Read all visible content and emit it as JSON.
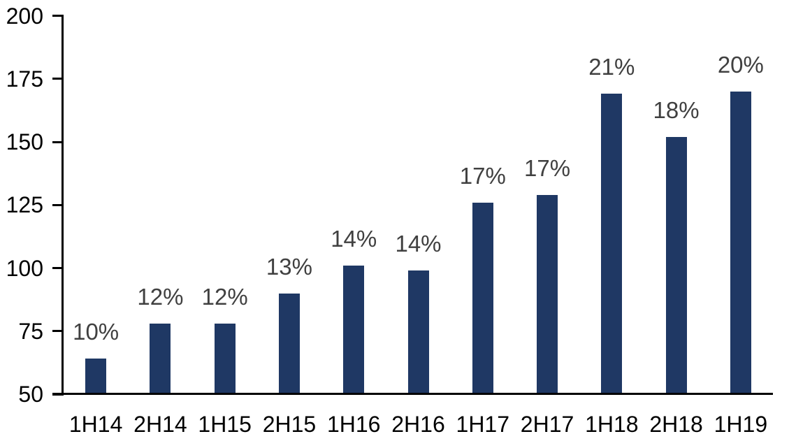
{
  "chart_data": {
    "type": "bar",
    "title": "",
    "xlabel": "",
    "ylabel": "",
    "categories": [
      "1H14",
      "2H14",
      "1H15",
      "2H15",
      "1H16",
      "2H16",
      "1H17",
      "2H17",
      "1H18",
      "2H18",
      "1H19"
    ],
    "values": [
      64,
      78,
      78,
      90,
      101,
      99,
      126,
      129,
      169,
      152,
      170
    ],
    "data_labels": [
      "10%",
      "12%",
      "12%",
      "13%",
      "14%",
      "14%",
      "17%",
      "17%",
      "21%",
      "18%",
      "20%"
    ],
    "ylim": [
      50,
      200
    ],
    "y_ticks": [
      50,
      75,
      100,
      125,
      150,
      175,
      200
    ],
    "grid": false,
    "legend": false,
    "colors": {
      "bar": "#1f3864",
      "data_label": "#404040",
      "axis_text": "#000000",
      "axis_line": "#000000"
    }
  }
}
